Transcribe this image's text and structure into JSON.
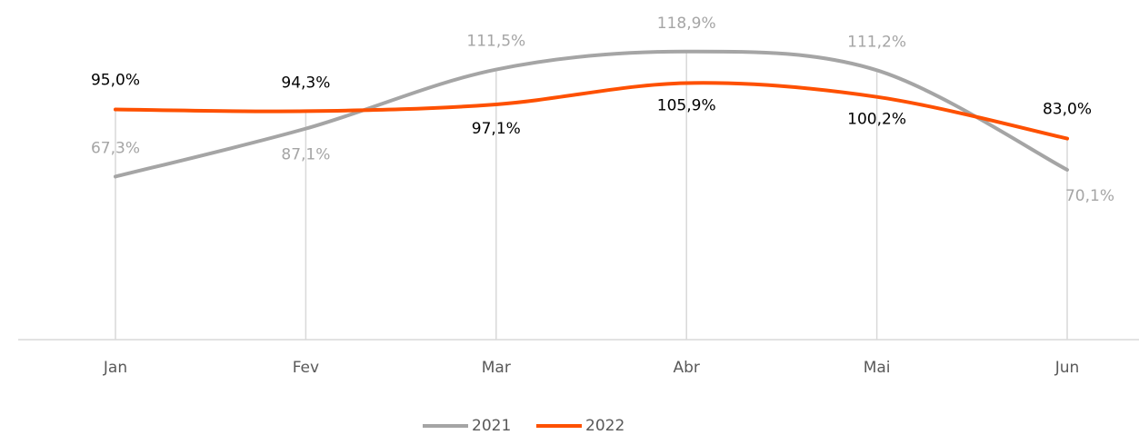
{
  "chart_data": {
    "type": "line",
    "categories": [
      "Jan",
      "Fev",
      "Mar",
      "Abr",
      "Mai",
      "Jun"
    ],
    "ylim": [
      0,
      140
    ],
    "series": [
      {
        "name": "2021",
        "color": "#a5a5a5",
        "values": [
          67.3,
          87.1,
          111.5,
          118.9,
          111.2,
          70.1
        ],
        "value_labels": [
          "67,3%",
          "87,1%",
          "111,5%",
          "118,9%",
          "111,2%",
          "70,1%"
        ]
      },
      {
        "name": "2022",
        "color": "#fe5000",
        "values": [
          95.0,
          94.3,
          97.1,
          105.9,
          100.2,
          83.0
        ],
        "value_labels": [
          "95,0%",
          "94,3%",
          "97,1%",
          "105,9%",
          "100,2%",
          "83,0%"
        ]
      }
    ]
  }
}
